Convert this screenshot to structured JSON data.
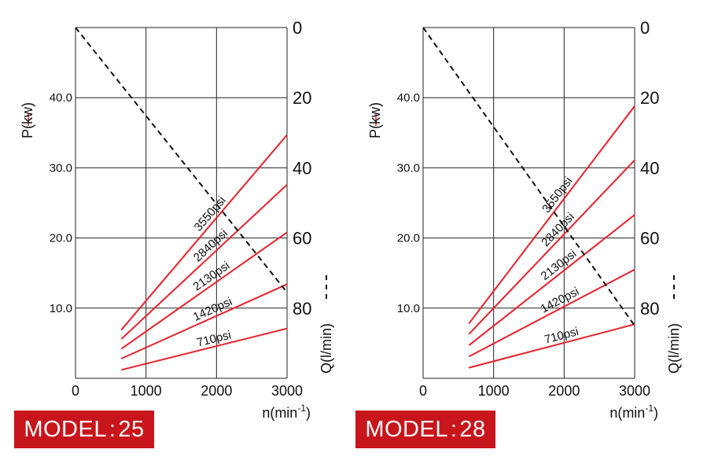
{
  "colors": {
    "power_line": "#e8202a",
    "flow_line": "#111111",
    "grid": "#222222",
    "badge_bg": "#c8151b",
    "badge_text": "#ffffff"
  },
  "charts": [
    {
      "model_label": "MODEL : 25",
      "left_axis_title": "P(kw)",
      "right_axis_title": "Q(l/min)",
      "bottom_axis_title": "n(min",
      "bottom_axis_title_sup": "-1",
      "bottom_axis_title_end": ")"
    },
    {
      "model_label": "MODEL : 28",
      "left_axis_title": "P(kw)",
      "right_axis_title": "Q(l/min)",
      "bottom_axis_title": "n(min",
      "bottom_axis_title_sup": "-1",
      "bottom_axis_title_end": ")"
    }
  ],
  "chart_data": [
    {
      "type": "line",
      "title": "MODEL:25",
      "xlabel": "n(min-1)",
      "ylabel": "P(kw)",
      "y2label": "Q(l/min)",
      "xlim": [
        0,
        3000
      ],
      "ylim": [
        0,
        50
      ],
      "y2lim": [
        0,
        100
      ],
      "y2_inverted": true,
      "grid": true,
      "x_ticks": [
        "0",
        "1000",
        "2000",
        "3000"
      ],
      "y_ticks": [
        "10.0",
        "20.0",
        "30.0",
        "40.0"
      ],
      "y2_ticks": [
        "0",
        "20",
        "40",
        "60",
        "80"
      ],
      "series": [
        {
          "name": "3550psi",
          "axis": "P",
          "x": [
            650,
            3000
          ],
          "y": [
            6.9,
            34.7
          ]
        },
        {
          "name": "2840psi",
          "axis": "P",
          "x": [
            650,
            3000
          ],
          "y": [
            5.6,
            27.6
          ]
        },
        {
          "name": "2130psi",
          "axis": "P",
          "x": [
            650,
            3000
          ],
          "y": [
            4.2,
            20.8
          ]
        },
        {
          "name": "1420psi",
          "axis": "P",
          "x": [
            650,
            3000
          ],
          "y": [
            2.8,
            13.4
          ]
        },
        {
          "name": "710psi",
          "axis": "P",
          "x": [
            650,
            3000
          ],
          "y": [
            1.2,
            7.1
          ]
        },
        {
          "name": "",
          "axis": "Q",
          "x": [
            0,
            3000
          ],
          "y": [
            0,
            75.5
          ],
          "style": "dashed"
        }
      ]
    },
    {
      "type": "line",
      "title": "MODEL:28",
      "xlabel": "n(min-1)",
      "ylabel": "P(kw)",
      "y2label": "Q(l/min)",
      "xlim": [
        0,
        3000
      ],
      "ylim": [
        0,
        50
      ],
      "y2lim": [
        0,
        100
      ],
      "y2_inverted": true,
      "grid": true,
      "x_ticks": [
        "0",
        "1000",
        "2000",
        "3000"
      ],
      "y_ticks": [
        "10.0",
        "20.0",
        "30.0",
        "40.0"
      ],
      "y2_ticks": [
        "0",
        "20",
        "40",
        "60",
        "80"
      ],
      "series": [
        {
          "name": "3550psi",
          "axis": "P",
          "x": [
            650,
            3000
          ],
          "y": [
            7.8,
            38.8
          ]
        },
        {
          "name": "2840psi",
          "axis": "P",
          "x": [
            650,
            3000
          ],
          "y": [
            6.3,
            31.1
          ]
        },
        {
          "name": "2130psi",
          "axis": "P",
          "x": [
            650,
            3000
          ],
          "y": [
            4.7,
            23.3
          ]
        },
        {
          "name": "1420psi",
          "axis": "P",
          "x": [
            650,
            3000
          ],
          "y": [
            3.1,
            15.5
          ]
        },
        {
          "name": "710psi",
          "axis": "P",
          "x": [
            650,
            3000
          ],
          "y": [
            1.5,
            7.7
          ]
        },
        {
          "name": "",
          "axis": "Q",
          "x": [
            0,
            3000
          ],
          "y": [
            0,
            85
          ],
          "style": "dashed"
        }
      ]
    }
  ]
}
